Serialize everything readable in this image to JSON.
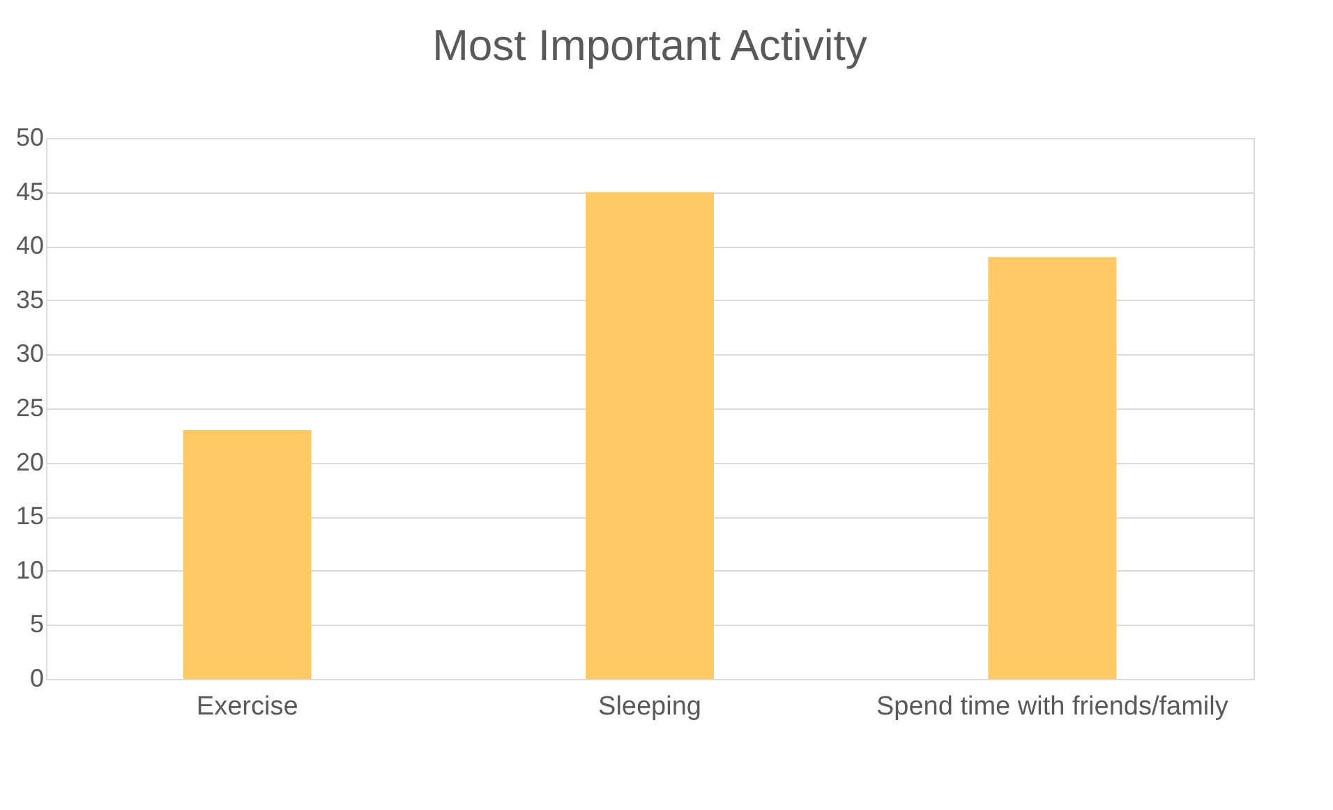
{
  "chart_data": {
    "type": "bar",
    "title": "Most Important Activity",
    "categories": [
      "Exercise",
      "Sleeping",
      "Spend time with friends/family"
    ],
    "values": [
      23,
      45,
      39
    ],
    "color": "#ffc966",
    "ylim": [
      0,
      50
    ],
    "yticks": [
      0,
      5,
      10,
      15,
      20,
      25,
      30,
      35,
      40,
      45,
      50
    ],
    "grid": "y"
  }
}
